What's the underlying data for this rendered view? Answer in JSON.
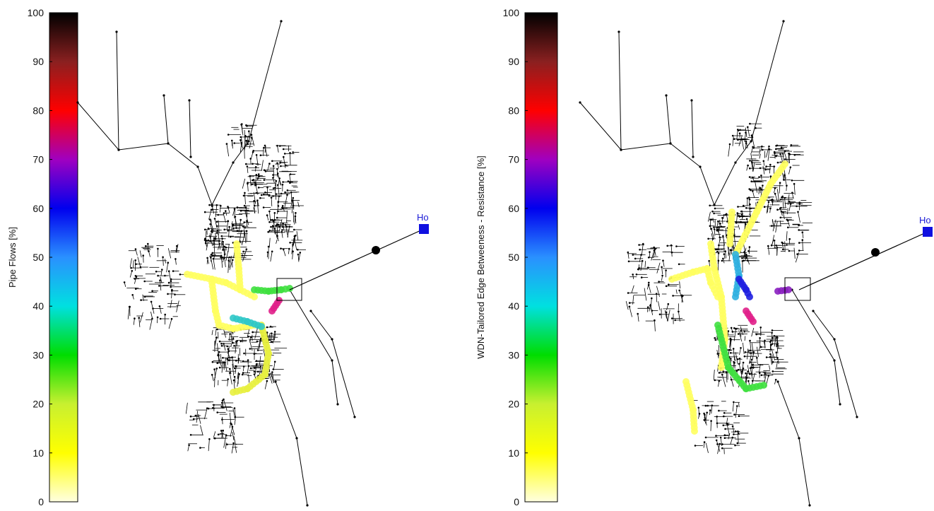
{
  "figure": {
    "panels": [
      {
        "id": "left",
        "colorbar_label": "Pipe Flows [%]",
        "colorbar_ticks": [
          "0",
          "10",
          "20",
          "30",
          "40",
          "50",
          "60",
          "70",
          "80",
          "90",
          "100"
        ],
        "source_label": "Ho"
      },
      {
        "id": "right",
        "colorbar_label": "WDN-Tailored Edge Betweeness - Resistance [%]",
        "colorbar_ticks": [
          "0",
          "10",
          "20",
          "30",
          "40",
          "50",
          "60",
          "70",
          "80",
          "90",
          "100"
        ],
        "source_label": "Ho"
      }
    ],
    "colors": {
      "network_lines": "#000000",
      "source_marker": "#1010e0",
      "reservoir_node": "#000000"
    },
    "colormap_stops": [
      {
        "value": 0,
        "color": "#ffffe0"
      },
      {
        "value": 10,
        "color": "#ffff00"
      },
      {
        "value": 20,
        "color": "#c8f030"
      },
      {
        "value": 30,
        "color": "#00dd00"
      },
      {
        "value": 40,
        "color": "#00e0e0"
      },
      {
        "value": 50,
        "color": "#2a90ff"
      },
      {
        "value": 60,
        "color": "#0000ee"
      },
      {
        "value": 70,
        "color": "#a000c0"
      },
      {
        "value": 80,
        "color": "#ff0000"
      },
      {
        "value": 90,
        "color": "#8a2020"
      },
      {
        "value": 100,
        "color": "#000000"
      }
    ]
  }
}
